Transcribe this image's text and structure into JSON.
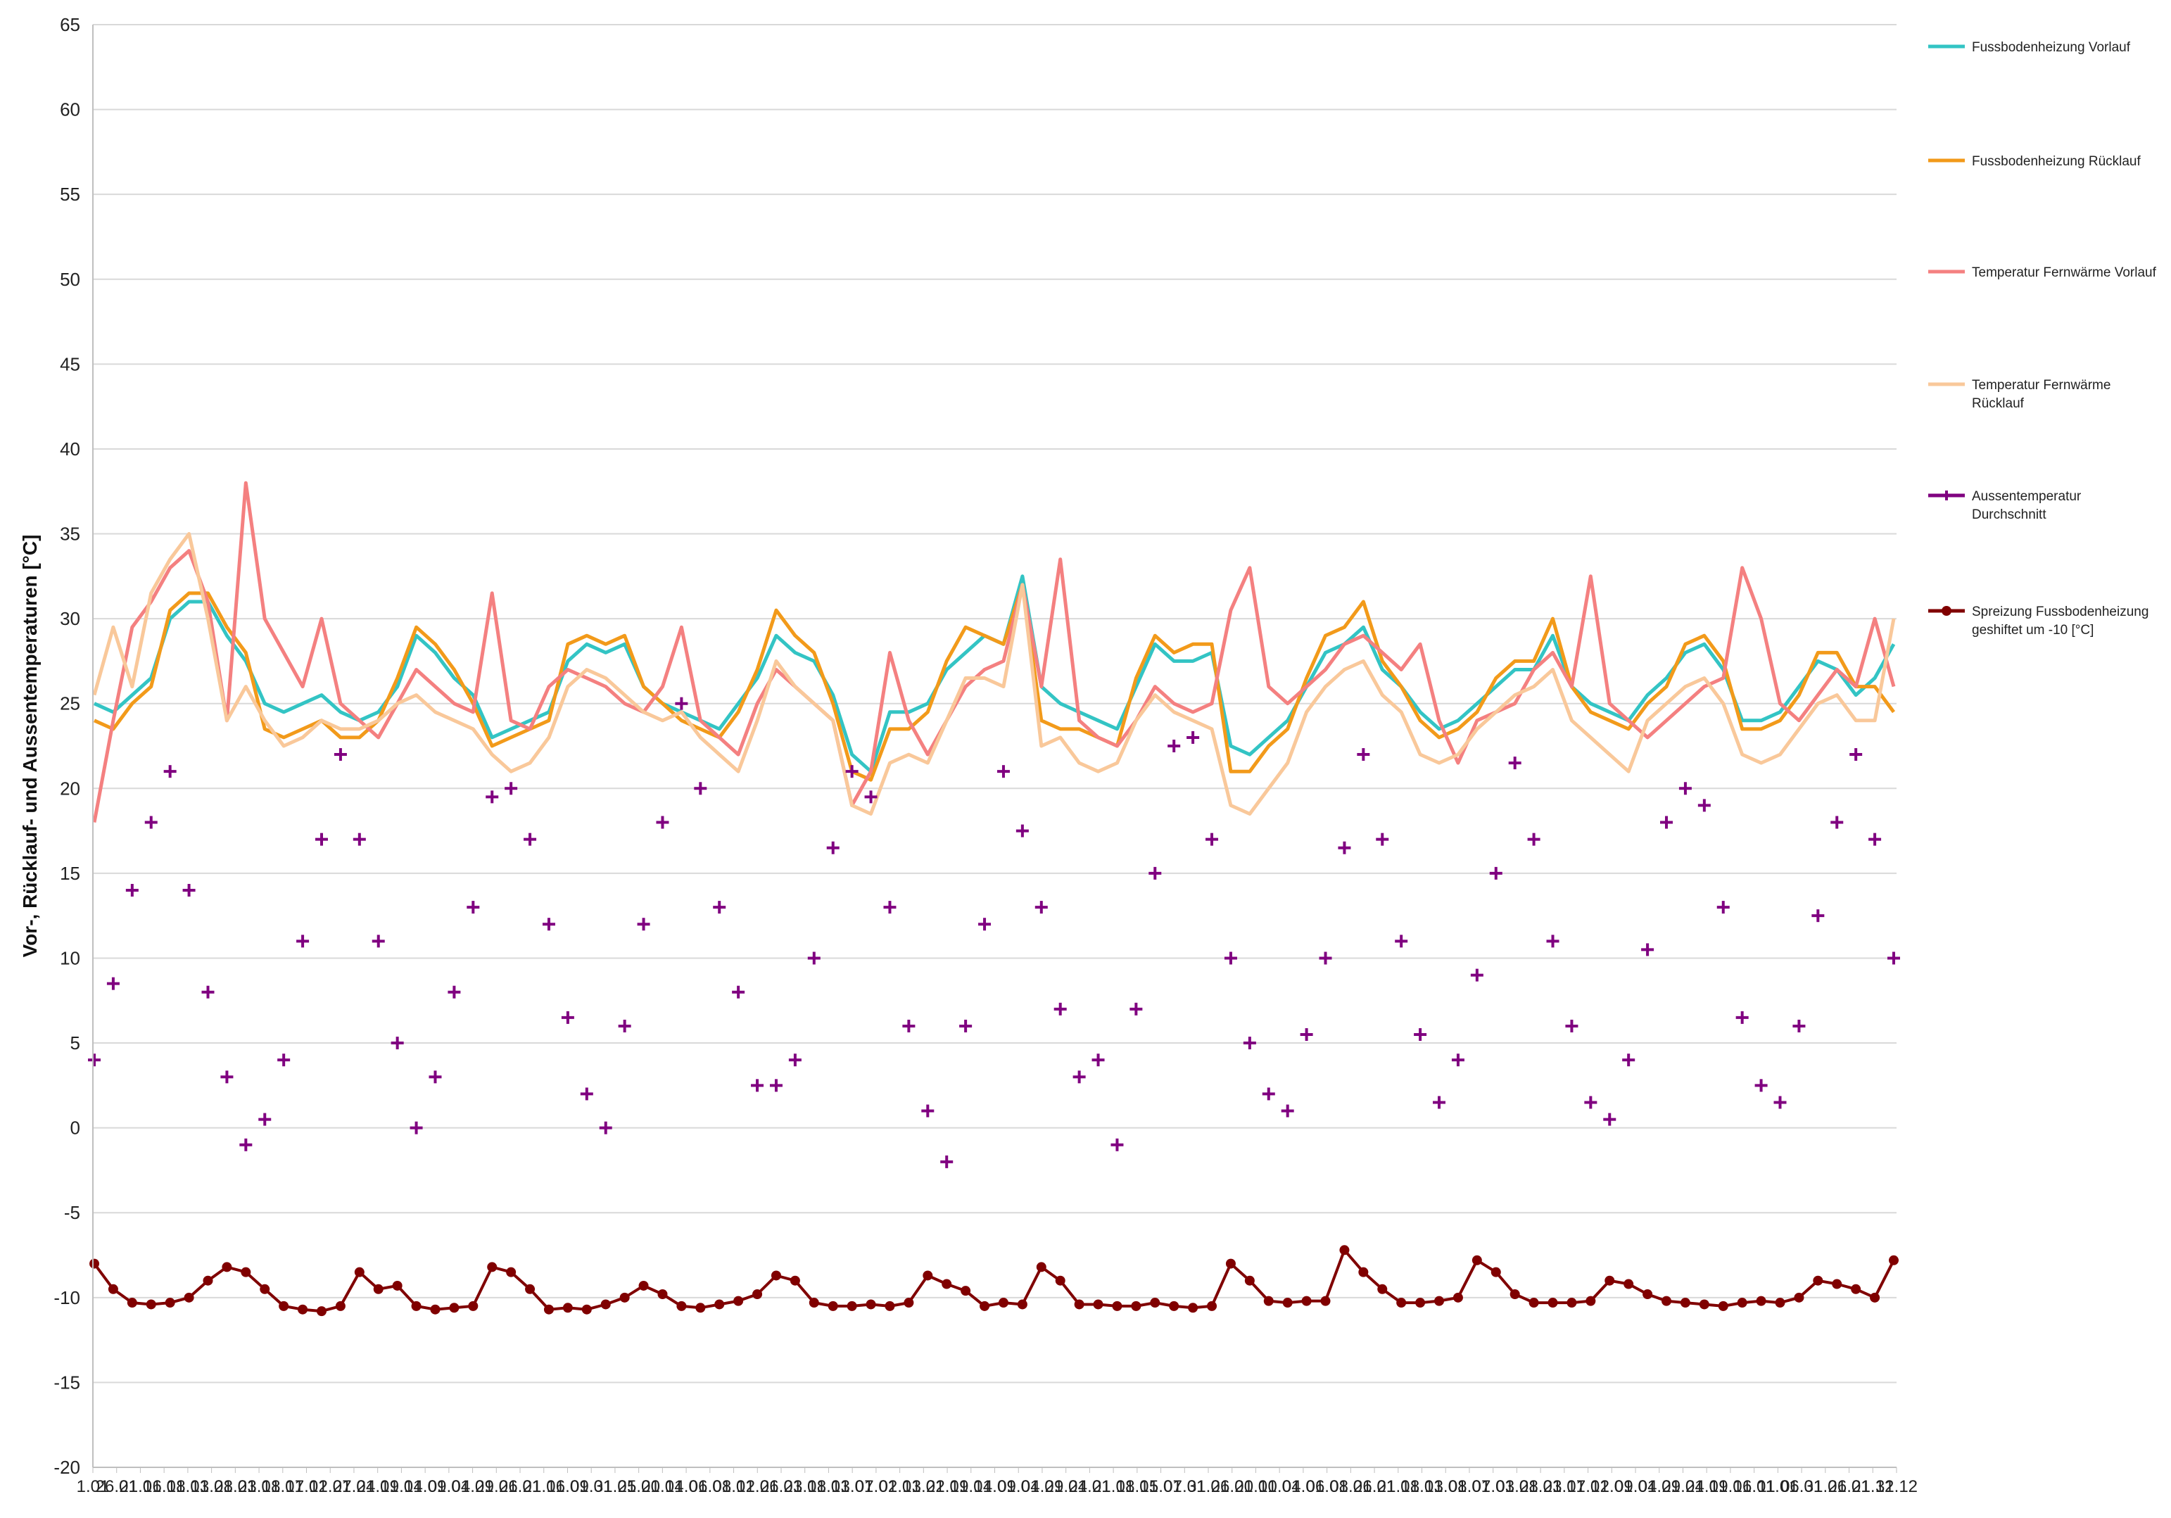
{
  "chart_data": {
    "type": "line",
    "ylabel": "Vor-, Rücklauf- und Aussentemperaturen [°C]",
    "ylim": [
      -20,
      65
    ],
    "yticks": [
      65,
      60,
      55,
      50,
      45,
      40,
      35,
      30,
      25,
      20,
      15,
      10,
      5,
      0,
      -5,
      -10,
      -15,
      -20
    ],
    "grid": true,
    "legend_position": "right",
    "x_axis_note": "dense overlapping date labels from 1.01 to 31.12",
    "xticks": [
      "1.01",
      "26.01",
      "21.01",
      "16.01",
      "18.01",
      "13.01",
      "28.01",
      "23.01",
      "18.01",
      "17.01",
      "12.01",
      "27.01",
      "24.01",
      "19.01",
      "14.01",
      "09.01",
      "04.01",
      "29.01",
      "26.01",
      "21.01",
      "16.01",
      "09.01",
      "31.01",
      "25.01",
      "20.01",
      "14.01",
      "06.01",
      "08.01",
      "12.01",
      "26.01",
      "23.01",
      "18.01",
      "13.01",
      "07.01",
      "02.01",
      "13.01",
      "22.01",
      "19.01",
      "14.01",
      "09.01",
      "04.01",
      "29.01",
      "24.01",
      "21.01",
      "18.01",
      "15.01",
      "07.01",
      "31.01",
      "26.01",
      "20.01",
      "10.01",
      "04.01",
      "06.01",
      "08.01",
      "26.01",
      "21.01",
      "18.01",
      "13.01",
      "08.01",
      "07.01",
      "03.01",
      "28.01",
      "23.01",
      "17.01",
      "12.01",
      "09.01",
      "04.01",
      "29.01",
      "24.01",
      "19.01",
      "16.01",
      "11.01",
      "06.01",
      "31.01",
      "26.01",
      "21.12",
      "31.12"
    ],
    "x_points": 96,
    "series": [
      {
        "name": "Fussbodenheizung Vorlauf",
        "color": "#33c4c4",
        "style": "line",
        "values": [
          25.0,
          24.5,
          25.5,
          26.5,
          30.0,
          31.0,
          31.0,
          29.0,
          27.5,
          25.0,
          24.5,
          25.0,
          25.5,
          24.5,
          24.0,
          24.5,
          26.0,
          29.0,
          28.0,
          26.5,
          25.5,
          23.0,
          23.5,
          24.0,
          24.5,
          27.5,
          28.5,
          28.0,
          28.5,
          26.0,
          25.0,
          24.5,
          24.0,
          23.5,
          25.0,
          26.5,
          29.0,
          28.0,
          27.5,
          25.5,
          22.0,
          21.0,
          24.5,
          24.5,
          25.0,
          27.0,
          28.0,
          29.0,
          28.5,
          32.5,
          26.0,
          25.0,
          24.5,
          24.0,
          23.5,
          26.0,
          28.5,
          27.5,
          27.5,
          28.0,
          22.5,
          22.0,
          23.0,
          24.0,
          26.0,
          28.0,
          28.5,
          29.5,
          27.0,
          26.0,
          24.5,
          23.5,
          24.0,
          25.0,
          26.0,
          27.0,
          27.0,
          29.0,
          26.0,
          25.0,
          24.5,
          24.0,
          25.5,
          26.5,
          28.0,
          28.5,
          27.0,
          24.0,
          24.0,
          24.5,
          26.0,
          27.5,
          27.0,
          25.5,
          26.5,
          28.5
        ]
      },
      {
        "name": "Fussbodenheizung Rücklauf",
        "color": "#f29a1a",
        "style": "line",
        "values": [
          24.0,
          23.5,
          25.0,
          26.0,
          30.5,
          31.5,
          31.5,
          29.5,
          28.0,
          23.5,
          23.0,
          23.5,
          24.0,
          23.0,
          23.0,
          24.0,
          26.5,
          29.5,
          28.5,
          27.0,
          25.0,
          22.5,
          23.0,
          23.5,
          24.0,
          28.5,
          29.0,
          28.5,
          29.0,
          26.0,
          25.0,
          24.0,
          23.5,
          23.0,
          24.5,
          27.0,
          30.5,
          29.0,
          28.0,
          25.0,
          21.0,
          20.5,
          23.5,
          23.5,
          24.5,
          27.5,
          29.5,
          29.0,
          28.5,
          32.0,
          24.0,
          23.5,
          23.5,
          23.0,
          22.5,
          26.5,
          29.0,
          28.0,
          28.5,
          28.5,
          21.0,
          21.0,
          22.5,
          23.5,
          26.5,
          29.0,
          29.5,
          31.0,
          27.5,
          26.0,
          24.0,
          23.0,
          23.5,
          24.5,
          26.5,
          27.5,
          27.5,
          30.0,
          26.0,
          24.5,
          24.0,
          23.5,
          25.0,
          26.0,
          28.5,
          29.0,
          27.5,
          23.5,
          23.5,
          24.0,
          25.5,
          28.0,
          28.0,
          26.0,
          26.0,
          24.5
        ]
      },
      {
        "name": "Temperatur Fernwärme Vorlauf",
        "color": "#f48080",
        "style": "line",
        "values": [
          18.0,
          24.0,
          29.5,
          31.0,
          33.0,
          34.0,
          31.0,
          24.0,
          38.0,
          30.0,
          28.0,
          26.0,
          30.0,
          25.0,
          24.0,
          23.0,
          25.0,
          27.0,
          26.0,
          25.0,
          24.5,
          31.5,
          24.0,
          23.5,
          26.0,
          27.0,
          26.5,
          26.0,
          25.0,
          24.5,
          26.0,
          29.5,
          24.0,
          23.0,
          22.0,
          25.0,
          27.0,
          26.0,
          25.0,
          24.0,
          19.0,
          21.0,
          28.0,
          24.0,
          22.0,
          24.0,
          26.0,
          27.0,
          27.5,
          32.0,
          26.0,
          33.5,
          24.0,
          23.0,
          22.5,
          24.0,
          26.0,
          25.0,
          24.5,
          25.0,
          30.5,
          33.0,
          26.0,
          25.0,
          26.0,
          27.0,
          28.5,
          29.0,
          28.0,
          27.0,
          28.5,
          24.0,
          21.5,
          24.0,
          24.5,
          25.0,
          27.0,
          28.0,
          26.0,
          32.5,
          25.0,
          24.0,
          23.0,
          24.0,
          25.0,
          26.0,
          26.5,
          33.0,
          30.0,
          25.0,
          24.0,
          25.5,
          27.0,
          26.0,
          30.0,
          26.0
        ]
      },
      {
        "name": "Temperatur Fernwärme Rücklauf",
        "color": "#f9c89a",
        "style": "line",
        "values": [
          25.5,
          29.5,
          26.0,
          31.5,
          33.5,
          35.0,
          30.0,
          24.0,
          26.0,
          24.0,
          22.5,
          23.0,
          24.0,
          23.5,
          23.5,
          24.0,
          25.0,
          25.5,
          24.5,
          24.0,
          23.5,
          22.0,
          21.0,
          21.5,
          23.0,
          26.0,
          27.0,
          26.5,
          25.5,
          24.5,
          24.0,
          24.5,
          23.0,
          22.0,
          21.0,
          24.0,
          27.5,
          26.0,
          25.0,
          24.0,
          19.0,
          18.5,
          21.5,
          22.0,
          21.5,
          24.0,
          26.5,
          26.5,
          26.0,
          32.0,
          22.5,
          23.0,
          21.5,
          21.0,
          21.5,
          24.0,
          25.5,
          24.5,
          24.0,
          23.5,
          19.0,
          18.5,
          20.0,
          21.5,
          24.5,
          26.0,
          27.0,
          27.5,
          25.5,
          24.5,
          22.0,
          21.5,
          22.0,
          23.5,
          24.5,
          25.5,
          26.0,
          27.0,
          24.0,
          23.0,
          22.0,
          21.0,
          24.0,
          25.0,
          26.0,
          26.5,
          25.0,
          22.0,
          21.5,
          22.0,
          23.5,
          25.0,
          25.5,
          24.0,
          24.0,
          30.0
        ]
      },
      {
        "name": "Aussentemperatur Durchschnitt",
        "color": "#800080",
        "style": "markers",
        "values": [
          4.0,
          8.5,
          14.0,
          18.0,
          21.0,
          14.0,
          8.0,
          3.0,
          -1.0,
          0.5,
          4.0,
          11.0,
          17.0,
          22.0,
          17.0,
          11.0,
          5.0,
          0.0,
          3.0,
          8.0,
          13.0,
          19.5,
          20.0,
          17.0,
          12.0,
          6.5,
          2.0,
          0.0,
          6.0,
          12.0,
          18.0,
          25.0,
          20.0,
          13.0,
          8.0,
          2.5,
          2.5,
          4.0,
          10.0,
          16.5,
          21.0,
          19.5,
          13.0,
          6.0,
          1.0,
          -2.0,
          6.0,
          12.0,
          21.0,
          17.5,
          13.0,
          7.0,
          3.0,
          4.0,
          -1.0,
          7.0,
          15.0,
          22.5,
          23.0,
          17.0,
          10.0,
          5.0,
          2.0,
          1.0,
          5.5,
          10.0,
          16.5,
          22.0,
          17.0,
          11.0,
          5.5,
          1.5,
          4.0,
          9.0,
          15.0,
          21.5,
          17.0,
          11.0,
          6.0,
          1.5,
          0.5,
          4.0,
          10.5,
          18.0,
          20.0,
          19.0,
          13.0,
          6.5,
          2.5,
          1.5,
          6.0,
          12.5,
          18.0,
          22.0,
          17.0,
          10.0
        ]
      },
      {
        "name": "Spreizung Fussbodenheizung geshiftet um -10 [°C]",
        "color": "#800000",
        "style": "line-markers",
        "values": [
          -8.0,
          -9.5,
          -10.3,
          -10.4,
          -10.3,
          -10.0,
          -9.0,
          -8.2,
          -8.5,
          -9.5,
          -10.5,
          -10.7,
          -10.8,
          -10.5,
          -8.5,
          -9.5,
          -9.3,
          -10.5,
          -10.7,
          -10.6,
          -10.5,
          -8.2,
          -8.5,
          -9.5,
          -10.7,
          -10.6,
          -10.7,
          -10.4,
          -10.0,
          -9.3,
          -9.8,
          -10.5,
          -10.6,
          -10.4,
          -10.2,
          -9.8,
          -8.7,
          -9.0,
          -10.3,
          -10.5,
          -10.5,
          -10.4,
          -10.5,
          -10.3,
          -8.7,
          -9.2,
          -9.6,
          -10.5,
          -10.3,
          -10.4,
          -8.2,
          -9.0,
          -10.4,
          -10.4,
          -10.5,
          -10.5,
          -10.3,
          -10.5,
          -10.6,
          -10.5,
          -8.0,
          -9.0,
          -10.2,
          -10.3,
          -10.2,
          -10.2,
          -7.2,
          -8.5,
          -9.5,
          -10.3,
          -10.3,
          -10.2,
          -10.0,
          -7.8,
          -8.5,
          -9.8,
          -10.3,
          -10.3,
          -10.3,
          -10.2,
          -9.0,
          -9.2,
          -9.8,
          -10.2,
          -10.3,
          -10.4,
          -10.5,
          -10.3,
          -10.2,
          -10.3,
          -10.0,
          -9.0,
          -9.2,
          -9.5,
          -10.0,
          -7.8
        ]
      }
    ]
  }
}
